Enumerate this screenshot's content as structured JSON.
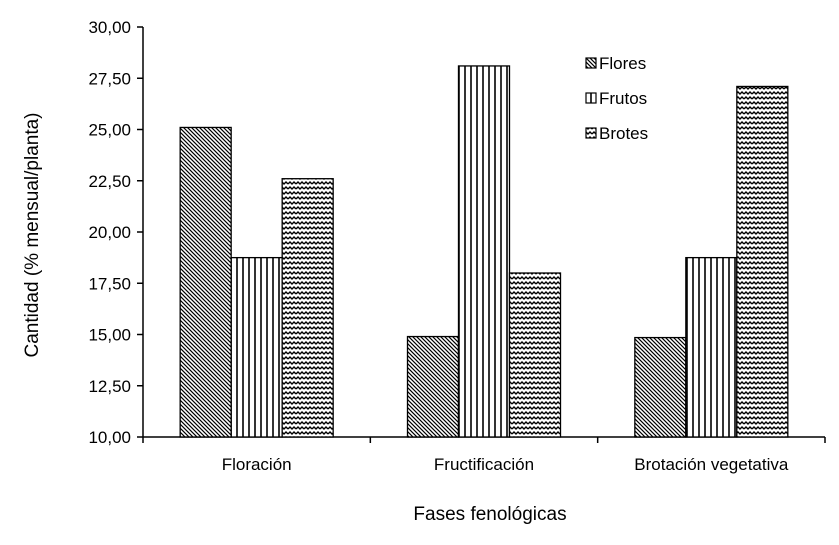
{
  "chart_data": {
    "type": "bar",
    "title": "",
    "xlabel": "Fases fenológicas",
    "ylabel": "Cantidad (% mensual/planta)",
    "ylim": [
      10,
      30
    ],
    "yticks": [
      "10,00",
      "12,50",
      "15,00",
      "17,50",
      "20,00",
      "22,50",
      "25,00",
      "27,50",
      "30,00"
    ],
    "categories": [
      "Floración",
      "Fructificación",
      "Brotación vegetativa"
    ],
    "series": [
      {
        "name": "Flores",
        "values": [
          25.1,
          14.9,
          14.85
        ],
        "pattern": "diagonal-hatch"
      },
      {
        "name": "Frutos",
        "values": [
          18.75,
          28.1,
          18.75
        ],
        "pattern": "vertical-stripes"
      },
      {
        "name": "Brotes",
        "values": [
          22.6,
          18.0,
          27.1
        ],
        "pattern": "zigzag"
      }
    ],
    "grid": false,
    "legend": "top-right"
  }
}
